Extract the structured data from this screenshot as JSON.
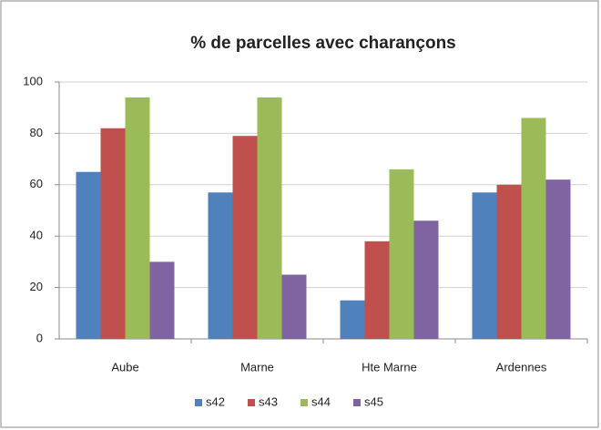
{
  "chart_data": {
    "type": "bar",
    "title": "% de parcelles avec charançons",
    "categories": [
      "Aube",
      "Marne",
      "Hte Marne",
      "Ardennes"
    ],
    "series": [
      {
        "name": "s42",
        "color": "#4f81bd",
        "values": [
          65,
          57,
          15,
          57
        ]
      },
      {
        "name": "s43",
        "color": "#c0504d",
        "values": [
          82,
          79,
          38,
          60
        ]
      },
      {
        "name": "s44",
        "color": "#9bbb59",
        "values": [
          94,
          94,
          66,
          86
        ]
      },
      {
        "name": "s45",
        "color": "#8064a2",
        "values": [
          30,
          25,
          46,
          62
        ]
      }
    ],
    "ylim": [
      0,
      100
    ],
    "yticks": [
      0,
      20,
      40,
      60,
      80,
      100
    ],
    "grid": true,
    "legend": "bottom"
  }
}
